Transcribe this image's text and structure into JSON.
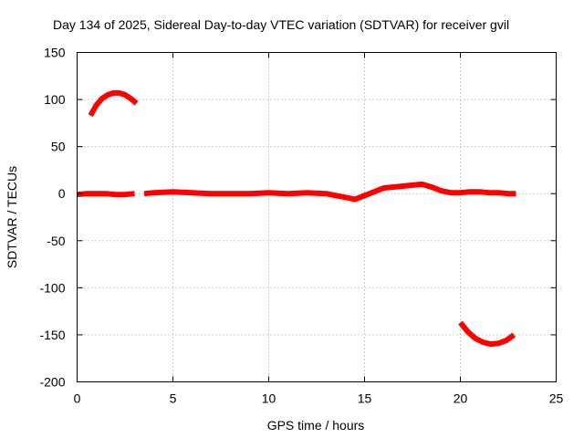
{
  "chart_data": {
    "type": "line",
    "title": "Day 134 of 2025, Sidereal Day-to-day VTEC variation (SDTVAR) for receiver gvil",
    "xlabel": "GPS time / hours",
    "ylabel": "SDTVAR / TECUs",
    "xlim": [
      0,
      25
    ],
    "ylim": [
      -200,
      150
    ],
    "grid": true,
    "xticks": [
      0,
      5,
      10,
      15,
      20,
      25
    ],
    "yticks": [
      -200,
      -150,
      -100,
      -50,
      0,
      50,
      100,
      150
    ],
    "xtick_labels": [
      "0",
      "5",
      "10",
      "15",
      "20",
      "25"
    ],
    "ytick_labels": [
      "-200",
      "-150",
      "-100",
      "-50",
      "0",
      "50",
      "100",
      "150"
    ],
    "series": [
      {
        "name": "upper-arc",
        "color": "#ff0000",
        "x": [
          0.7,
          1.0,
          1.3,
          1.6,
          1.9,
          2.2,
          2.5,
          2.8,
          3.1
        ],
        "y": [
          83,
          94,
          101,
          105,
          107,
          107,
          105,
          101,
          96
        ]
      },
      {
        "name": "baseline-early",
        "color": "#ff0000",
        "x": [
          0.0,
          0.5,
          1.0,
          1.5,
          2.0,
          2.5,
          3.0
        ],
        "y": [
          -1,
          0,
          0,
          0,
          -1,
          -1,
          0
        ]
      },
      {
        "name": "baseline-main",
        "color": "#ff0000",
        "x": [
          3.5,
          4.0,
          5.0,
          6.0,
          7.0,
          8.0,
          9.0,
          10.0,
          11.0,
          12.0,
          13.0,
          13.5,
          14.0,
          14.5,
          15.0,
          15.5,
          16.0,
          16.5,
          17.0,
          17.5,
          18.0,
          18.5,
          19.0,
          19.5,
          20.0,
          20.5,
          21.0,
          21.5,
          22.0,
          22.5,
          22.9
        ],
        "y": [
          0,
          1,
          2,
          1,
          0,
          0,
          0,
          1,
          0,
          1,
          0,
          -2,
          -4,
          -6,
          -2,
          2,
          6,
          7,
          8,
          9,
          10,
          7,
          3,
          1,
          1,
          2,
          2,
          1,
          1,
          0,
          0
        ]
      },
      {
        "name": "lower-arc",
        "color": "#ff0000",
        "x": [
          20.0,
          20.4,
          20.8,
          21.2,
          21.6,
          22.0,
          22.4,
          22.8
        ],
        "y": [
          -137,
          -147,
          -154,
          -158,
          -160,
          -159,
          -156,
          -150
        ]
      }
    ]
  }
}
